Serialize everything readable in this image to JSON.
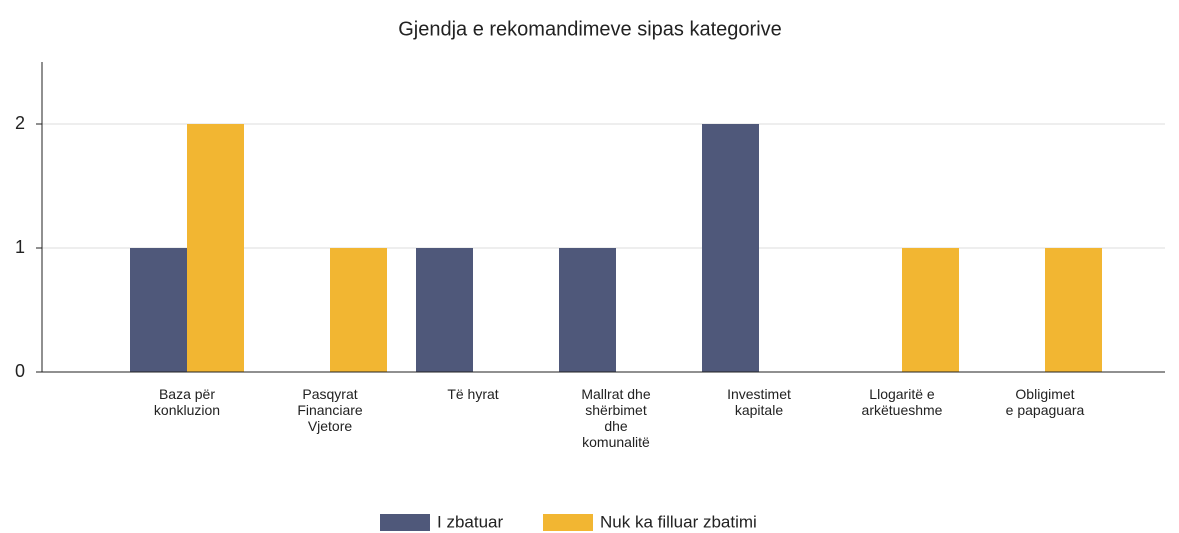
{
  "chart_data": {
    "type": "bar",
    "title": "Gjendja e rekomandimeve sipas kategorive",
    "categories": [
      "Baza për\nkonkluzion",
      "Pasqyrat\nFinanciare\nVjetore",
      "Të hyrat",
      "Mallrat dhe\nshërbimet\ndhe\nkomunalitë",
      "Investimet\nkapitale",
      "Llogaritë e\narkëtueshme",
      "Obligimet\ne papaguara"
    ],
    "series": [
      {
        "name": "I zbatuar",
        "color": "#4f587a",
        "values": [
          1,
          0,
          1,
          1,
          2,
          0,
          0
        ]
      },
      {
        "name": "Nuk ka filluar zbatimi",
        "color": "#f2b632",
        "values": [
          2,
          1,
          0,
          0,
          0,
          1,
          1
        ]
      }
    ],
    "ylim": [
      0,
      2.5
    ],
    "yticks": [
      0,
      1,
      2
    ],
    "grid": true
  }
}
